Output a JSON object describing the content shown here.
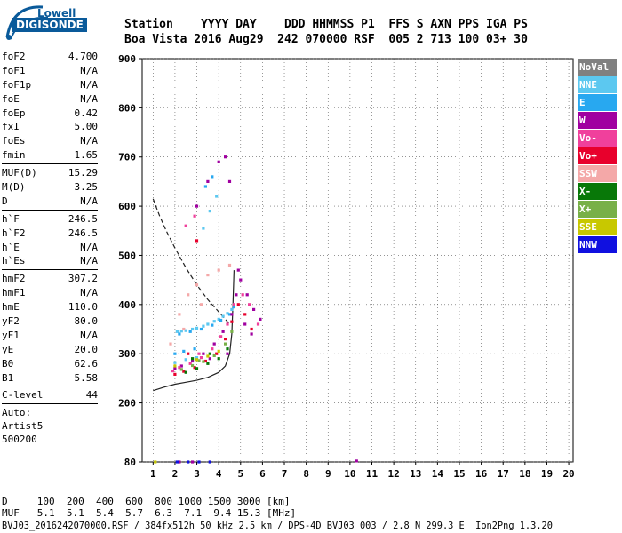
{
  "logo": {
    "line1": "Lowell",
    "line2": "DIGISONDE"
  },
  "header": {
    "line1": "Station    YYYY DAY    DDD HHMMSS P1  FFS S AXN PPS IGA PS",
    "line2": "Boa Vista 2016 Aug29  242 070000 RSF  005 2 713 100 03+ 30"
  },
  "params": [
    [
      {
        "k": "foF2",
        "v": "4.700"
      },
      {
        "k": "foF1",
        "v": "N/A"
      },
      {
        "k": "foF1p",
        "v": "N/A"
      },
      {
        "k": "foE",
        "v": "N/A"
      },
      {
        "k": "foEp",
        "v": "0.42"
      },
      {
        "k": "fxI",
        "v": "5.00"
      },
      {
        "k": "foEs",
        "v": "N/A"
      },
      {
        "k": "fmin",
        "v": "1.65"
      }
    ],
    [
      {
        "k": "MUF(D)",
        "v": "15.29"
      },
      {
        "k": "M(D)",
        "v": "3.25"
      },
      {
        "k": "D",
        "v": "N/A"
      }
    ],
    [
      {
        "k": "h`F",
        "v": "246.5"
      },
      {
        "k": "h`F2",
        "v": "246.5"
      },
      {
        "k": "h`E",
        "v": "N/A"
      },
      {
        "k": "h`Es",
        "v": "N/A"
      }
    ],
    [
      {
        "k": "hmF2",
        "v": "307.2"
      },
      {
        "k": "hmF1",
        "v": "N/A"
      },
      {
        "k": "hmE",
        "v": "110.0"
      },
      {
        "k": "yF2",
        "v": "80.0"
      },
      {
        "k": "yF1",
        "v": "N/A"
      },
      {
        "k": "yE",
        "v": "20.0"
      },
      {
        "k": "B0",
        "v": "62.6"
      },
      {
        "k": "B1",
        "v": "5.58"
      }
    ],
    [
      {
        "k": "C-level",
        "v": "44"
      }
    ]
  ],
  "auto": {
    "line1": "Auto:",
    "line2": "Artist5",
    "line3": "500200"
  },
  "legend": [
    {
      "label": "NoVal",
      "color": "#808080"
    },
    {
      "label": "NNE",
      "color": "#5cc8f0"
    },
    {
      "label": "E",
      "color": "#28a8f0"
    },
    {
      "label": "W",
      "color": "#a000a0"
    },
    {
      "label": "Vo-",
      "color": "#f0409c"
    },
    {
      "label": "Vo+",
      "color": "#e8002c"
    },
    {
      "label": "SSW",
      "color": "#f4a8a8"
    },
    {
      "label": "X-",
      "color": "#087808"
    },
    {
      "label": "X+",
      "color": "#78b048"
    },
    {
      "label": "SSE",
      "color": "#c8c800"
    },
    {
      "label": "NNW",
      "color": "#1010e0"
    }
  ],
  "footer": {
    "line1": "D     100  200  400  600  800 1000 1500 3000 [km]",
    "line2": "MUF   5.1  5.1  5.4  5.7  6.3  7.1  9.4 15.3 [MHz]",
    "line3": "BVJ03_2016242070000.RSF / 384fx512h 50 kHz 2.5 km / DPS-4D BVJ03 003 / 2.8 N 299.3 E  Ion2Png 1.3.20"
  },
  "chart_data": {
    "type": "scatter",
    "title": "",
    "xlabel": "",
    "ylabel": "",
    "xlim": [
      0.5,
      20.2
    ],
    "ylim": [
      80,
      900
    ],
    "xticks": [
      1,
      2,
      3,
      4,
      5,
      6,
      7,
      8,
      9,
      10,
      11,
      12,
      13,
      14,
      15,
      16,
      17,
      18,
      19,
      20
    ],
    "yticks": [
      80,
      200,
      300,
      400,
      500,
      600,
      700,
      800,
      900
    ],
    "curves": [
      {
        "style": "solid",
        "name": "",
        "x": [
          1.0,
          1.5,
          2.0,
          2.5,
          3.0,
          3.5,
          4.0,
          4.3,
          4.5,
          4.6,
          4.65,
          4.7
        ],
        "y": [
          225,
          232,
          238,
          242,
          246,
          252,
          262,
          275,
          300,
          340,
          400,
          470
        ]
      },
      {
        "style": "dashed",
        "name": "",
        "x": [
          1.0,
          1.3,
          1.6,
          2.0,
          2.5,
          3.0,
          3.5,
          4.0,
          4.3,
          4.5
        ],
        "y": [
          615,
          580,
          550,
          515,
          475,
          440,
          410,
          385,
          370,
          360
        ]
      }
    ],
    "series": [
      {
        "name": "NNE",
        "color": "#5cc8f0",
        "points": [
          [
            2.1,
            345
          ],
          [
            2.5,
            347
          ],
          [
            3.0,
            352
          ],
          [
            3.5,
            360
          ],
          [
            3.8,
            366
          ],
          [
            4.0,
            370
          ],
          [
            4.2,
            376
          ],
          [
            2.3,
            346
          ],
          [
            2.8,
            350
          ],
          [
            3.3,
            356
          ],
          [
            4.4,
            382
          ],
          [
            4.6,
            390
          ],
          [
            2.0,
            282
          ],
          [
            2.5,
            288
          ],
          [
            3.0,
            292
          ],
          [
            3.3,
            555
          ],
          [
            3.6,
            590
          ],
          [
            3.9,
            620
          ]
        ]
      },
      {
        "name": "E",
        "color": "#28a8f0",
        "points": [
          [
            2.2,
            340
          ],
          [
            2.7,
            345
          ],
          [
            3.2,
            350
          ],
          [
            3.7,
            358
          ],
          [
            4.1,
            368
          ],
          [
            4.5,
            380
          ],
          [
            4.7,
            395
          ],
          [
            2.0,
            300
          ],
          [
            2.4,
            305
          ],
          [
            2.9,
            310
          ],
          [
            3.4,
            640
          ],
          [
            3.7,
            660
          ]
        ]
      },
      {
        "name": "W",
        "color": "#a000a0",
        "points": [
          [
            2.0,
            270
          ],
          [
            2.3,
            275
          ],
          [
            2.8,
            285
          ],
          [
            3.3,
            300
          ],
          [
            3.8,
            320
          ],
          [
            4.2,
            345
          ],
          [
            4.6,
            380
          ],
          [
            4.8,
            420
          ],
          [
            5.0,
            450
          ],
          [
            5.3,
            420
          ],
          [
            5.6,
            390
          ],
          [
            5.9,
            370
          ],
          [
            4.9,
            470
          ],
          [
            3.0,
            600
          ],
          [
            3.5,
            650
          ],
          [
            4.0,
            690
          ],
          [
            4.3,
            700
          ],
          [
            4.5,
            650
          ],
          [
            2.2,
            80
          ],
          [
            2.8,
            80
          ],
          [
            10.3,
            82
          ],
          [
            5.2,
            360
          ],
          [
            5.5,
            340
          ],
          [
            4.4,
            300
          ],
          [
            3.6,
            290
          ]
        ]
      },
      {
        "name": "Vo-",
        "color": "#f0409c",
        "points": [
          [
            1.9,
            265
          ],
          [
            2.2,
            272
          ],
          [
            2.7,
            280
          ],
          [
            3.2,
            292
          ],
          [
            3.7,
            310
          ],
          [
            4.1,
            335
          ],
          [
            4.4,
            360
          ],
          [
            4.7,
            400
          ],
          [
            5.1,
            420
          ],
          [
            5.4,
            400
          ],
          [
            5.8,
            360
          ],
          [
            3.1,
            300
          ],
          [
            2.5,
            560
          ],
          [
            2.9,
            580
          ]
        ]
      },
      {
        "name": "Vo+",
        "color": "#e8002c",
        "points": [
          [
            2.0,
            258
          ],
          [
            2.4,
            264
          ],
          [
            2.9,
            272
          ],
          [
            3.4,
            285
          ],
          [
            3.9,
            300
          ],
          [
            4.3,
            330
          ],
          [
            4.6,
            365
          ],
          [
            4.9,
            400
          ],
          [
            5.2,
            380
          ],
          [
            5.5,
            350
          ],
          [
            2.6,
            300
          ],
          [
            3.0,
            530
          ]
        ]
      },
      {
        "name": "SSW",
        "color": "#f4a8a8",
        "points": [
          [
            1.8,
            320
          ],
          [
            2.2,
            380
          ],
          [
            2.6,
            420
          ],
          [
            3.0,
            440
          ],
          [
            3.5,
            460
          ],
          [
            4.0,
            470
          ],
          [
            4.5,
            480
          ],
          [
            2.4,
            350
          ],
          [
            3.2,
            400
          ]
        ]
      },
      {
        "name": "X-",
        "color": "#087808",
        "points": [
          [
            2.5,
            262
          ],
          [
            3.0,
            270
          ],
          [
            3.5,
            280
          ],
          [
            4.0,
            290
          ],
          [
            4.4,
            310
          ],
          [
            2.8,
            290
          ],
          [
            3.6,
            300
          ]
        ]
      },
      {
        "name": "X+",
        "color": "#78b048",
        "points": [
          [
            2.3,
            268
          ],
          [
            2.8,
            276
          ],
          [
            3.3,
            284
          ],
          [
            3.8,
            296
          ],
          [
            4.3,
            320
          ],
          [
            4.6,
            345
          ],
          [
            3.1,
            286
          ]
        ]
      },
      {
        "name": "SSE",
        "color": "#c8c800",
        "points": [
          [
            1.1,
            80
          ],
          [
            2.0,
            275
          ],
          [
            3.0,
            288
          ],
          [
            4.0,
            305
          ],
          [
            3.5,
            295
          ]
        ]
      },
      {
        "name": "NNW",
        "color": "#1010e0",
        "points": [
          [
            2.1,
            80
          ],
          [
            2.6,
            80
          ],
          [
            3.1,
            80
          ],
          [
            3.6,
            80
          ]
        ]
      }
    ]
  }
}
